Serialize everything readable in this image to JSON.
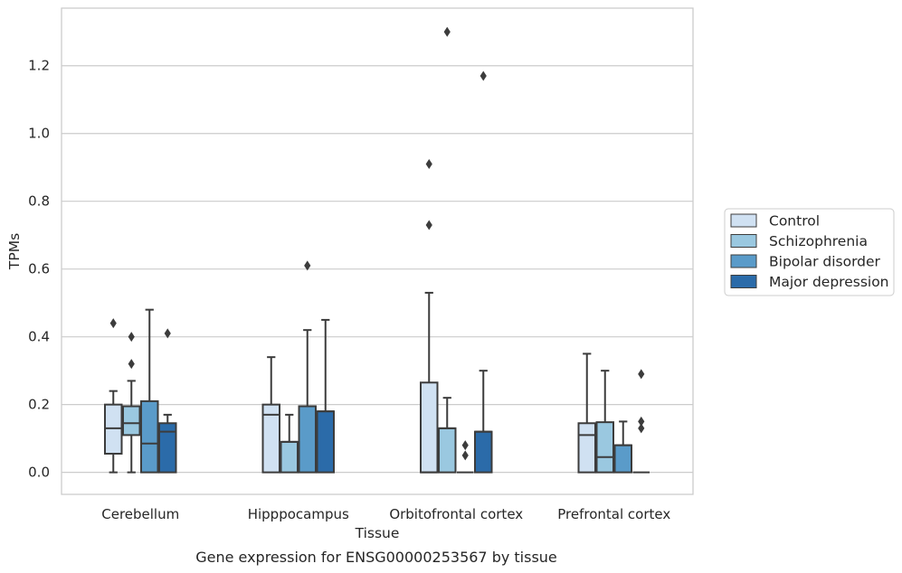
{
  "chart_data": {
    "type": "box",
    "title": "",
    "caption": "Gene expression for ENSG00000253567 by tissue",
    "xlabel": "Tissue",
    "ylabel": "TPMs",
    "ylim": [
      -0.065,
      1.37
    ],
    "yticks": [
      "0.0",
      "0.2",
      "0.4",
      "0.6",
      "0.8",
      "1.0",
      "1.2"
    ],
    "grid": "horizontal",
    "legend_position": "right",
    "categories": [
      "Cerebellum",
      "Hipppocampus",
      "Orbitofrontal cortex",
      "Prefrontal cortex"
    ],
    "series": [
      {
        "name": "Control",
        "color": "#d0e1f2",
        "boxes": [
          {
            "whislo": 0.0,
            "q1": 0.055,
            "med": 0.13,
            "q3": 0.2,
            "whishi": 0.24,
            "fliers": [
              0.44
            ]
          },
          {
            "whislo": 0.0,
            "q1": 0.0,
            "med": 0.17,
            "q3": 0.2,
            "whishi": 0.34,
            "fliers": []
          },
          {
            "whislo": 0.0,
            "q1": 0.0,
            "med": 0.0,
            "q3": 0.265,
            "whishi": 0.53,
            "fliers": [
              0.73,
              0.91
            ]
          },
          {
            "whislo": 0.0,
            "q1": 0.0,
            "med": 0.11,
            "q3": 0.145,
            "whishi": 0.35,
            "fliers": []
          }
        ]
      },
      {
        "name": "Schizophrenia",
        "color": "#9ac8e0",
        "boxes": [
          {
            "whislo": 0.0,
            "q1": 0.11,
            "med": 0.145,
            "q3": 0.195,
            "whishi": 0.27,
            "fliers": [
              0.32,
              0.4
            ]
          },
          {
            "whislo": 0.0,
            "q1": 0.0,
            "med": 0.09,
            "q3": 0.09,
            "whishi": 0.17,
            "fliers": []
          },
          {
            "whislo": 0.0,
            "q1": 0.0,
            "med": 0.13,
            "q3": 0.13,
            "whishi": 0.22,
            "fliers": [
              1.3
            ]
          },
          {
            "whislo": 0.0,
            "q1": 0.0,
            "med": 0.045,
            "q3": 0.148,
            "whishi": 0.3,
            "fliers": []
          }
        ]
      },
      {
        "name": "Bipolar disorder",
        "color": "#5a9bc9",
        "boxes": [
          {
            "whislo": 0.0,
            "q1": 0.0,
            "med": 0.085,
            "q3": 0.21,
            "whishi": 0.48,
            "fliers": []
          },
          {
            "whislo": 0.0,
            "q1": 0.0,
            "med": 0.195,
            "q3": 0.195,
            "whishi": 0.42,
            "fliers": [
              0.61
            ]
          },
          {
            "whislo": 0.0,
            "q1": 0.0,
            "med": 0.0,
            "q3": 0.0,
            "whishi": 0.0,
            "fliers": [
              0.05,
              0.08
            ]
          },
          {
            "whislo": 0.0,
            "q1": 0.0,
            "med": 0.08,
            "q3": 0.08,
            "whishi": 0.15,
            "fliers": []
          }
        ]
      },
      {
        "name": "Major depression",
        "color": "#2b6ba9",
        "boxes": [
          {
            "whislo": 0.0,
            "q1": 0.0,
            "med": 0.12,
            "q3": 0.145,
            "whishi": 0.17,
            "fliers": [
              0.41
            ]
          },
          {
            "whislo": 0.0,
            "q1": 0.0,
            "med": 0.18,
            "q3": 0.18,
            "whishi": 0.45,
            "fliers": []
          },
          {
            "whislo": 0.0,
            "q1": 0.0,
            "med": 0.12,
            "q3": 0.12,
            "whishi": 0.3,
            "fliers": [
              1.17
            ]
          },
          {
            "whislo": 0.0,
            "q1": 0.0,
            "med": 0.0,
            "q3": 0.0,
            "whishi": 0.0,
            "fliers": [
              0.13,
              0.15,
              0.29
            ]
          }
        ]
      }
    ]
  }
}
